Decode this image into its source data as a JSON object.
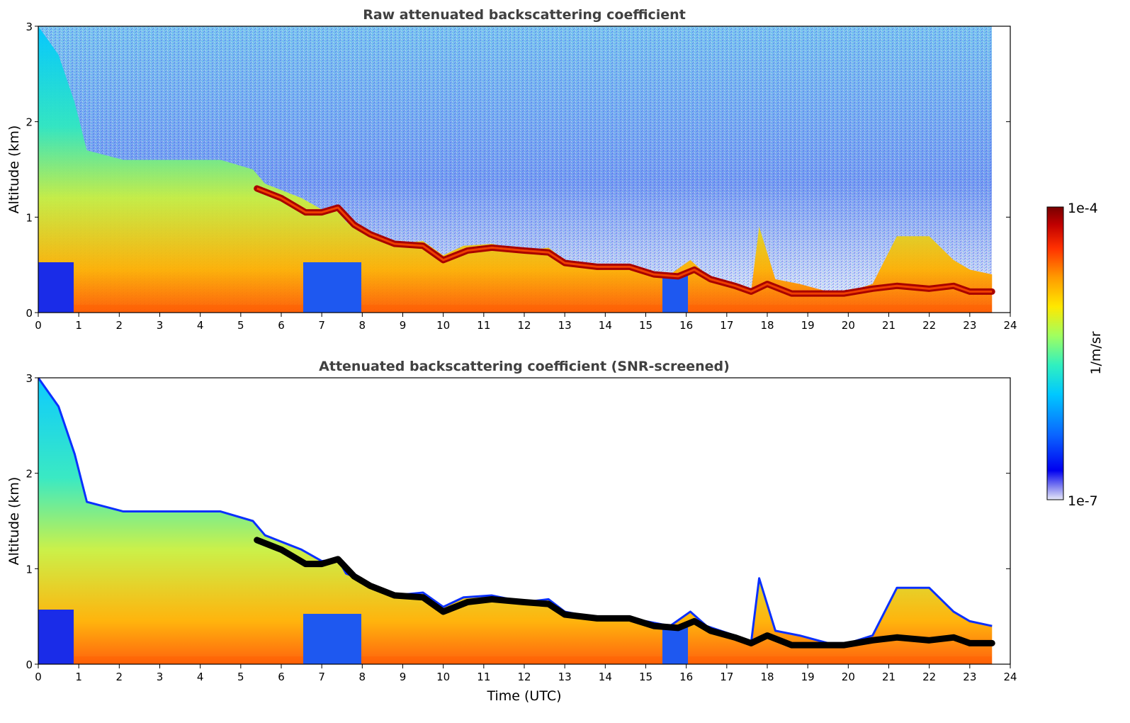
{
  "chart_data": [
    {
      "type": "heatmap",
      "title": "Raw attenuated backscattering coefficient",
      "xlabel": "",
      "ylabel": "Altitude (km)",
      "xlim": [
        0,
        24
      ],
      "ylim": [
        0,
        3
      ],
      "x_ticks": [
        "0",
        "1",
        "2",
        "3",
        "4",
        "5",
        "6",
        "7",
        "8",
        "9",
        "10",
        "11",
        "12",
        "13",
        "14",
        "15",
        "16",
        "17",
        "18",
        "19",
        "20",
        "21",
        "22",
        "23",
        "24"
      ],
      "y_ticks": [
        "0",
        "1",
        "2",
        "3"
      ],
      "data_end_hour": 23.55,
      "boundary_layer_top_km": {
        "x": [
          0,
          0.5,
          0.9,
          1.2,
          2.1,
          3.2,
          4.5,
          5.3,
          5.6,
          6.2,
          6.5,
          7.0,
          7.4,
          7.6,
          7.9,
          8.3,
          8.8,
          9.5,
          10.0,
          10.5,
          11.2,
          12.0,
          12.6,
          13.0,
          13.6,
          14.3,
          15.0,
          15.6,
          16.1,
          16.5,
          17.2,
          17.6,
          17.8,
          18.2,
          18.8,
          19.5,
          20.0,
          20.6,
          21.2,
          22.0,
          22.6,
          23.0,
          23.55
        ],
        "y": [
          3.0,
          2.7,
          2.2,
          1.7,
          1.6,
          1.6,
          1.6,
          1.5,
          1.35,
          1.25,
          1.2,
          1.08,
          1.1,
          0.95,
          0.9,
          0.78,
          0.72,
          0.75,
          0.6,
          0.7,
          0.72,
          0.65,
          0.68,
          0.55,
          0.5,
          0.48,
          0.45,
          0.4,
          0.55,
          0.4,
          0.3,
          0.22,
          0.9,
          0.35,
          0.3,
          0.22,
          0.22,
          0.3,
          0.8,
          0.8,
          0.55,
          0.45,
          0.4
        ]
      },
      "cloud_base_km": {
        "x": [
          5.4,
          6.0,
          6.6,
          7.0,
          7.4,
          7.8,
          8.2,
          8.8,
          9.5,
          10.0,
          10.6,
          11.2,
          12.0,
          12.6,
          13.0,
          13.8,
          14.6,
          15.2,
          15.8,
          16.2,
          16.6,
          17.2,
          17.6,
          18.0,
          18.6,
          19.2,
          19.9,
          20.6,
          21.2,
          22.0,
          22.6,
          23.0,
          23.55
        ],
        "y": [
          1.3,
          1.2,
          1.05,
          1.05,
          1.1,
          0.92,
          0.82,
          0.72,
          0.7,
          0.55,
          0.65,
          0.68,
          0.65,
          0.63,
          0.52,
          0.48,
          0.48,
          0.4,
          0.38,
          0.45,
          0.35,
          0.28,
          0.22,
          0.3,
          0.2,
          0.2,
          0.2,
          0.25,
          0.28,
          0.25,
          0.28,
          0.22,
          0.22
        ]
      }
    },
    {
      "type": "heatmap",
      "title": "Attenuated backscattering coefficient (SNR-screened)",
      "xlabel": "Time (UTC)",
      "ylabel": "Altitude (km)",
      "xlim": [
        0,
        24
      ],
      "ylim": [
        0,
        3
      ],
      "x_ticks": [
        "0",
        "1",
        "2",
        "3",
        "4",
        "5",
        "6",
        "7",
        "8",
        "9",
        "10",
        "11",
        "12",
        "13",
        "14",
        "15",
        "16",
        "17",
        "18",
        "19",
        "20",
        "21",
        "22",
        "23",
        "24"
      ],
      "y_ticks": [
        "0",
        "1",
        "2",
        "3"
      ],
      "data_end_hour": 23.55
    }
  ],
  "colorbar": {
    "label": "1/m/sr",
    "max_label": "1e-4",
    "min_label": "1e-7",
    "scale": "log",
    "colors": [
      "#e6e8f8",
      "#8c8cf0",
      "#0000f0",
      "#0a64ff",
      "#00c8ff",
      "#30f0c0",
      "#a0ff60",
      "#ffe800",
      "#ff9a00",
      "#ff3000",
      "#c00000",
      "#780000"
    ]
  }
}
